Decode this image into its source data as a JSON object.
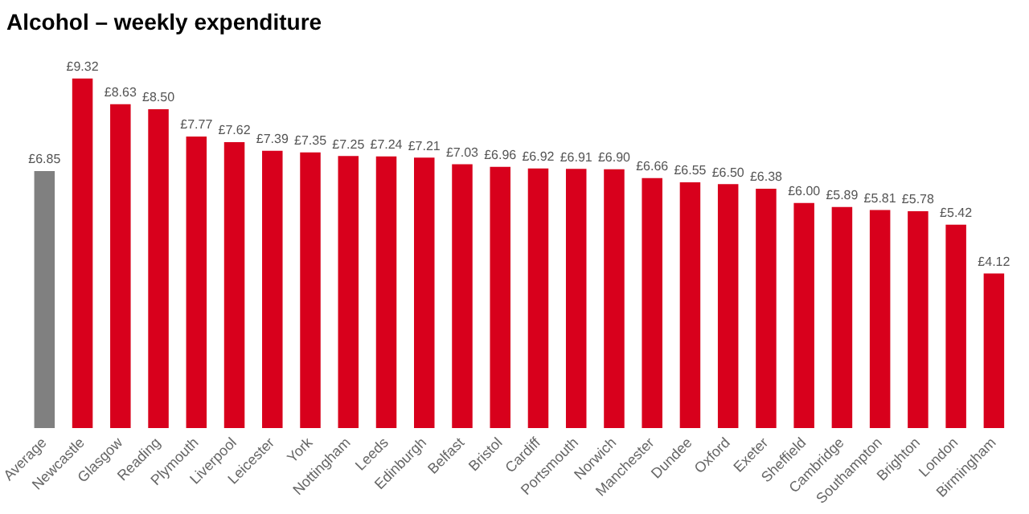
{
  "chart_data": {
    "type": "bar",
    "title": "Alcohol – weekly expenditure",
    "categories": [
      "Average",
      "Newcastle",
      "Glasgow",
      "Reading",
      "Plymouth",
      "Liverpool",
      "Leicester",
      "York",
      "Nottingham",
      "Leeds",
      "Edinburgh",
      "Belfast",
      "Bristol",
      "Cardiff",
      "Portsmouth",
      "Norwich",
      "Manchester",
      "Dundee",
      "Oxford",
      "Exeter",
      "Sheffield",
      "Cambridge",
      "Southampton",
      "Brighton",
      "London",
      "Birmingham"
    ],
    "values": [
      6.85,
      9.32,
      8.63,
      8.5,
      7.77,
      7.62,
      7.39,
      7.35,
      7.25,
      7.24,
      7.21,
      7.03,
      6.96,
      6.92,
      6.91,
      6.9,
      6.66,
      6.55,
      6.5,
      6.38,
      6.0,
      5.89,
      5.81,
      5.78,
      5.42,
      4.12
    ],
    "value_labels": [
      "£6.85",
      "£9.32",
      "£8.63",
      "£8.50",
      "£7.77",
      "£7.62",
      "£7.39",
      "£7.35",
      "£7.25",
      "£7.24",
      "£7.21",
      "£7.03",
      "£6.96",
      "£6.92",
      "£6.91",
      "£6.90",
      "£6.66",
      "£6.55",
      "£6.50",
      "£6.38",
      "£6.00",
      "£5.89",
      "£5.81",
      "£5.78",
      "£5.42",
      "£4.12"
    ],
    "colors": [
      "#808080",
      "#d8001c",
      "#d8001c",
      "#d8001c",
      "#d8001c",
      "#d8001c",
      "#d8001c",
      "#d8001c",
      "#d8001c",
      "#d8001c",
      "#d8001c",
      "#d8001c",
      "#d8001c",
      "#d8001c",
      "#d8001c",
      "#d8001c",
      "#d8001c",
      "#d8001c",
      "#d8001c",
      "#d8001c",
      "#d8001c",
      "#d8001c",
      "#d8001c",
      "#d8001c",
      "#d8001c",
      "#d8001c"
    ],
    "grid": false,
    "legend": false
  }
}
